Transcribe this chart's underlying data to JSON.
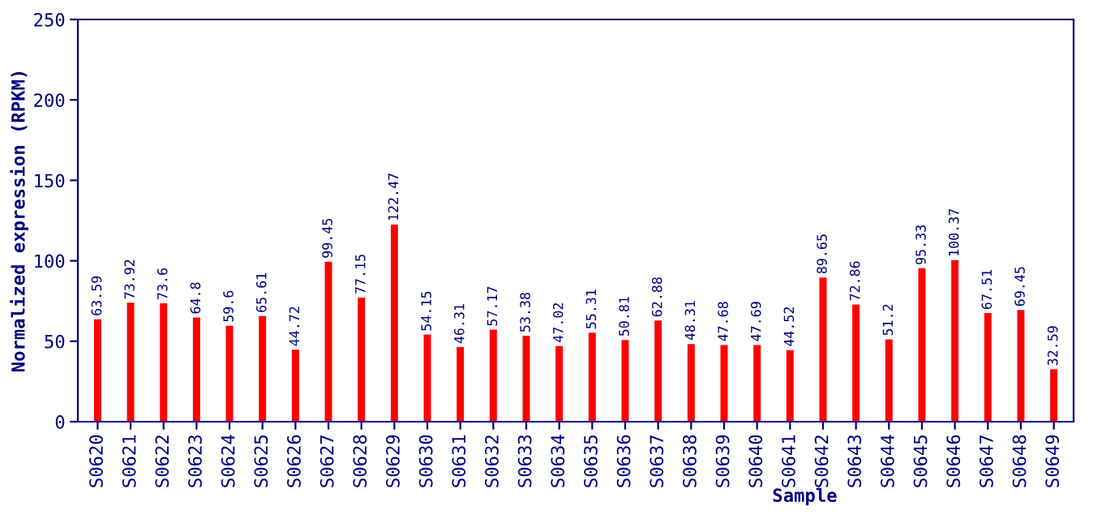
{
  "chart_data": {
    "type": "bar",
    "xlabel": "Sample",
    "ylabel": "Normalized expression (RPKM)",
    "categories": [
      "S0620",
      "S0621",
      "S0622",
      "S0623",
      "S0624",
      "S0625",
      "S0626",
      "S0627",
      "S0628",
      "S0629",
      "S0630",
      "S0631",
      "S0632",
      "S0633",
      "S0634",
      "S0635",
      "S0636",
      "S0637",
      "S0638",
      "S0639",
      "S0640",
      "S0641",
      "S0642",
      "S0643",
      "S0644",
      "S0645",
      "S0646",
      "S0647",
      "S0648",
      "S0649"
    ],
    "values": [
      63.59,
      73.92,
      73.6,
      64.8,
      59.6,
      65.61,
      44.72,
      99.45,
      77.15,
      122.47,
      54.15,
      46.31,
      57.17,
      53.38,
      47.02,
      55.31,
      50.81,
      62.88,
      48.31,
      47.68,
      47.69,
      44.52,
      89.65,
      72.86,
      51.2,
      95.33,
      100.37,
      67.51,
      69.45,
      32.59
    ],
    "color": "#ff0000",
    "ylim": [
      0,
      250
    ],
    "yticks": [
      0,
      50,
      100,
      150,
      200,
      250
    ],
    "data_labels": true,
    "grid": false,
    "legend": false
  }
}
